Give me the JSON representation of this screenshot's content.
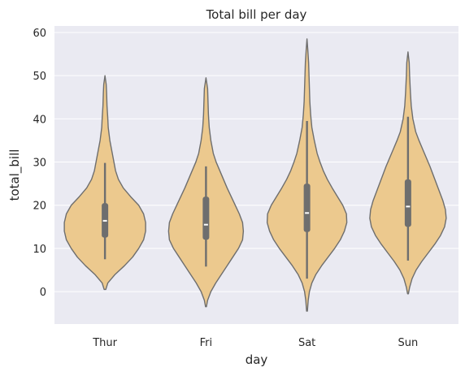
{
  "chart_data": {
    "type": "violin",
    "title": "Total bill per day",
    "xlabel": "day",
    "ylabel": "total_bill",
    "categories": [
      "Thur",
      "Fri",
      "Sat",
      "Sun"
    ],
    "ylim": [
      -7.5,
      61.5
    ],
    "yticks": [
      "0",
      "10",
      "20",
      "30",
      "40",
      "50",
      "60"
    ],
    "ytick_values": [
      0,
      10,
      20,
      30,
      40,
      50,
      60
    ],
    "grid": true,
    "colors": {
      "background": "#EAEAF2",
      "violin_fill": "#ECC98E",
      "violin_edge": "#6E6E6E",
      "box": "#6E6E6E",
      "median": "#FFFFFF",
      "grid": "#FFFFFF"
    },
    "violins": [
      {
        "category": "Thur",
        "range": [
          0.5,
          50
        ],
        "median": 16.4,
        "q1": 12.5,
        "q3": 20.5,
        "whisker_low": 7.5,
        "whisker_high": 29.8,
        "profile": [
          [
            0.5,
            0.02
          ],
          [
            2,
            0.07
          ],
          [
            4,
            0.25
          ],
          [
            6,
            0.48
          ],
          [
            8,
            0.68
          ],
          [
            10,
            0.83
          ],
          [
            12,
            0.95
          ],
          [
            14,
            1.0
          ],
          [
            16,
            1.0
          ],
          [
            18,
            0.95
          ],
          [
            20,
            0.83
          ],
          [
            22,
            0.63
          ],
          [
            24,
            0.45
          ],
          [
            26,
            0.33
          ],
          [
            28,
            0.26
          ],
          [
            30,
            0.22
          ],
          [
            32,
            0.18
          ],
          [
            35,
            0.12
          ],
          [
            38,
            0.08
          ],
          [
            40,
            0.07
          ],
          [
            43,
            0.05
          ],
          [
            46,
            0.04
          ],
          [
            48,
            0.03
          ],
          [
            50,
            0.0
          ]
        ]
      },
      {
        "category": "Fri",
        "range": [
          -3.5,
          49.5
        ],
        "median": 15.5,
        "q1": 12.0,
        "q3": 22.0,
        "whisker_low": 5.8,
        "whisker_high": 29.0,
        "profile": [
          [
            -3.5,
            0.01
          ],
          [
            -2,
            0.04
          ],
          [
            0,
            0.12
          ],
          [
            2,
            0.24
          ],
          [
            4,
            0.38
          ],
          [
            6,
            0.52
          ],
          [
            8,
            0.66
          ],
          [
            10,
            0.8
          ],
          [
            12,
            0.9
          ],
          [
            14,
            0.92
          ],
          [
            16,
            0.9
          ],
          [
            18,
            0.82
          ],
          [
            20,
            0.72
          ],
          [
            22,
            0.62
          ],
          [
            24,
            0.52
          ],
          [
            26,
            0.43
          ],
          [
            28,
            0.34
          ],
          [
            30,
            0.25
          ],
          [
            32,
            0.18
          ],
          [
            35,
            0.12
          ],
          [
            38,
            0.08
          ],
          [
            41,
            0.06
          ],
          [
            44,
            0.05
          ],
          [
            47,
            0.04
          ],
          [
            49.5,
            0.0
          ]
        ]
      },
      {
        "category": "Sat",
        "range": [
          -4.5,
          58.5
        ],
        "median": 18.2,
        "q1": 13.8,
        "q3": 25.0,
        "whisker_low": 3.0,
        "whisker_high": 39.5,
        "profile": [
          [
            -4.5,
            0.01
          ],
          [
            -2,
            0.03
          ],
          [
            0,
            0.06
          ],
          [
            2,
            0.12
          ],
          [
            4,
            0.22
          ],
          [
            6,
            0.36
          ],
          [
            8,
            0.52
          ],
          [
            10,
            0.68
          ],
          [
            12,
            0.82
          ],
          [
            14,
            0.92
          ],
          [
            16,
            0.98
          ],
          [
            18,
            0.97
          ],
          [
            20,
            0.88
          ],
          [
            22,
            0.75
          ],
          [
            24,
            0.62
          ],
          [
            26,
            0.5
          ],
          [
            28,
            0.4
          ],
          [
            30,
            0.32
          ],
          [
            32,
            0.25
          ],
          [
            35,
            0.18
          ],
          [
            38,
            0.12
          ],
          [
            41,
            0.09
          ],
          [
            44,
            0.07
          ],
          [
            47,
            0.06
          ],
          [
            50,
            0.05
          ],
          [
            53,
            0.04
          ],
          [
            56,
            0.02
          ],
          [
            58.5,
            0.0
          ]
        ]
      },
      {
        "category": "Sun",
        "range": [
          -0.5,
          55.5
        ],
        "median": 19.7,
        "q1": 15.0,
        "q3": 26.0,
        "whisker_low": 7.2,
        "whisker_high": 40.5,
        "profile": [
          [
            -0.5,
            0.01
          ],
          [
            1,
            0.04
          ],
          [
            3,
            0.1
          ],
          [
            5,
            0.2
          ],
          [
            7,
            0.34
          ],
          [
            9,
            0.5
          ],
          [
            11,
            0.66
          ],
          [
            13,
            0.8
          ],
          [
            15,
            0.9
          ],
          [
            17,
            0.94
          ],
          [
            19,
            0.92
          ],
          [
            21,
            0.86
          ],
          [
            23,
            0.78
          ],
          [
            25,
            0.7
          ],
          [
            27,
            0.62
          ],
          [
            29,
            0.54
          ],
          [
            31,
            0.45
          ],
          [
            33,
            0.36
          ],
          [
            35,
            0.27
          ],
          [
            37,
            0.19
          ],
          [
            40,
            0.12
          ],
          [
            43,
            0.08
          ],
          [
            46,
            0.06
          ],
          [
            50,
            0.04
          ],
          [
            53,
            0.03
          ],
          [
            55.5,
            0.0
          ]
        ]
      }
    ]
  }
}
